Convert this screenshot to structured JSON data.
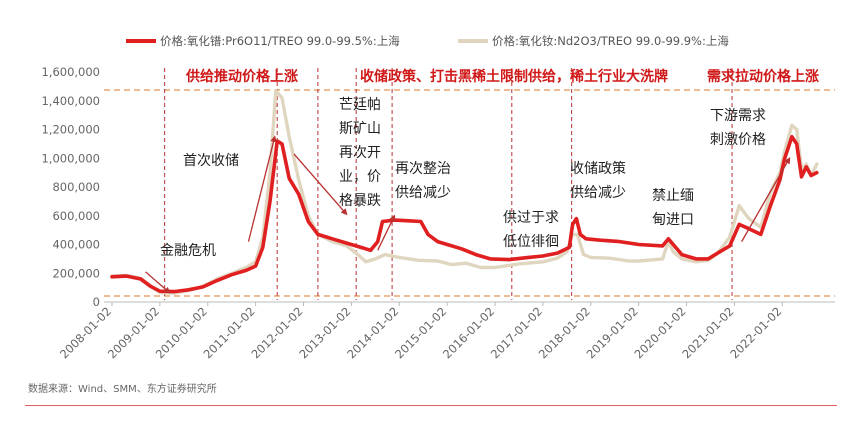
{
  "legend": {
    "pr": "价格:氧化镨:Pr6O11/TREO 99.0-99.5%:上海",
    "nd": "价格:氧化钕:Nd2O3/TREO 99.0-99.9%:上海"
  },
  "source": "数据来源：Wind、SMM、东方证券研究所",
  "phases": [
    "供给推动价格上涨",
    "收储政策、打击黑稀土限制供给，稀土行业大洗牌",
    "需求拉动价格上涨"
  ],
  "annotations": [
    {
      "id": "financial-crisis",
      "lines": [
        "金融危机"
      ]
    },
    {
      "id": "first-stockpile",
      "lines": [
        "首次收储"
      ]
    },
    {
      "id": "mountain-pass",
      "lines": [
        "芒廷帕",
        "斯矿山",
        "再次开",
        "业，价",
        "格暴跌"
      ]
    },
    {
      "id": "rectification",
      "lines": [
        "再次整治",
        "供给减少"
      ]
    },
    {
      "id": "oversupply",
      "lines": [
        "供过于求",
        "低位徘徊"
      ]
    },
    {
      "id": "stockpile-policy",
      "lines": [
        "收储政策",
        "供给减少"
      ]
    },
    {
      "id": "myanmar-ban",
      "lines": [
        "禁止缅",
        "甸进口"
      ]
    },
    {
      "id": "downstream-demand",
      "lines": [
        "下游需求",
        "刺激价格"
      ]
    }
  ],
  "colors": {
    "pr": "#e02020",
    "nd": "#e0d6c0",
    "guide": "#e07a2a",
    "phase_text": "#d01818",
    "axis_text": "#666666",
    "arrow": "#b83030"
  },
  "chart_data": {
    "type": "line",
    "x_ticks": [
      "2008-01-02",
      "2009-01-02",
      "2010-01-02",
      "2011-01-02",
      "2012-01-02",
      "2013-01-02",
      "2014-01-02",
      "2015-01-02",
      "2016-01-02",
      "2017-01-02",
      "2018-01-02",
      "2019-01-02",
      "2020-01-02",
      "2021-01-02",
      "2022-01-02"
    ],
    "y_ticks": [
      "0",
      "200,000",
      "400,000",
      "600,000",
      "800,000",
      "1,000,000",
      "1,200,000",
      "1,400,000",
      "1,600,000"
    ],
    "ylim": [
      0,
      1600000
    ],
    "xlim": [
      2008.0,
      2023.1
    ],
    "series": [
      {
        "name": "价格:氧化镨:Pr6O11/TREO 99.0-99.5%:上海",
        "points": [
          [
            2008.0,
            175000
          ],
          [
            2008.3,
            180000
          ],
          [
            2008.6,
            160000
          ],
          [
            2008.8,
            110000
          ],
          [
            2009.0,
            75000
          ],
          [
            2009.3,
            72000
          ],
          [
            2009.6,
            85000
          ],
          [
            2009.9,
            105000
          ],
          [
            2010.2,
            150000
          ],
          [
            2010.5,
            190000
          ],
          [
            2010.8,
            220000
          ],
          [
            2011.0,
            250000
          ],
          [
            2011.15,
            380000
          ],
          [
            2011.3,
            700000
          ],
          [
            2011.45,
            1120000
          ],
          [
            2011.55,
            1100000
          ],
          [
            2011.7,
            860000
          ],
          [
            2011.9,
            750000
          ],
          [
            2012.1,
            560000
          ],
          [
            2012.3,
            470000
          ],
          [
            2012.6,
            440000
          ],
          [
            2012.9,
            410000
          ],
          [
            2013.2,
            380000
          ],
          [
            2013.4,
            360000
          ],
          [
            2013.55,
            420000
          ],
          [
            2013.65,
            560000
          ],
          [
            2013.9,
            570000
          ],
          [
            2014.2,
            565000
          ],
          [
            2014.45,
            560000
          ],
          [
            2014.6,
            470000
          ],
          [
            2014.8,
            420000
          ],
          [
            2015.0,
            400000
          ],
          [
            2015.3,
            370000
          ],
          [
            2015.6,
            330000
          ],
          [
            2015.9,
            300000
          ],
          [
            2016.3,
            295000
          ],
          [
            2016.7,
            310000
          ],
          [
            2017.0,
            320000
          ],
          [
            2017.3,
            340000
          ],
          [
            2017.55,
            380000
          ],
          [
            2017.62,
            540000
          ],
          [
            2017.7,
            580000
          ],
          [
            2017.78,
            470000
          ],
          [
            2017.9,
            440000
          ],
          [
            2018.2,
            430000
          ],
          [
            2018.6,
            420000
          ],
          [
            2019.0,
            400000
          ],
          [
            2019.5,
            390000
          ],
          [
            2019.62,
            440000
          ],
          [
            2019.72,
            400000
          ],
          [
            2019.9,
            330000
          ],
          [
            2020.2,
            300000
          ],
          [
            2020.45,
            300000
          ],
          [
            2020.65,
            340000
          ],
          [
            2020.9,
            390000
          ],
          [
            2021.1,
            540000
          ],
          [
            2021.3,
            510000
          ],
          [
            2021.55,
            470000
          ],
          [
            2021.75,
            670000
          ],
          [
            2021.95,
            850000
          ],
          [
            2022.05,
            1000000
          ],
          [
            2022.2,
            1150000
          ],
          [
            2022.3,
            1100000
          ],
          [
            2022.4,
            870000
          ],
          [
            2022.5,
            940000
          ],
          [
            2022.6,
            880000
          ],
          [
            2022.72,
            900000
          ]
        ]
      },
      {
        "name": "价格:氧化钕:Nd2O3/TREO 99.0-99.9%:上海",
        "points": [
          [
            2008.0,
            180000
          ],
          [
            2008.3,
            185000
          ],
          [
            2008.6,
            165000
          ],
          [
            2008.8,
            115000
          ],
          [
            2009.0,
            65000
          ],
          [
            2009.3,
            62000
          ],
          [
            2009.6,
            80000
          ],
          [
            2009.9,
            110000
          ],
          [
            2010.2,
            160000
          ],
          [
            2010.5,
            200000
          ],
          [
            2010.8,
            240000
          ],
          [
            2011.0,
            280000
          ],
          [
            2011.15,
            450000
          ],
          [
            2011.3,
            900000
          ],
          [
            2011.42,
            1470000
          ],
          [
            2011.55,
            1420000
          ],
          [
            2011.7,
            1150000
          ],
          [
            2011.9,
            850000
          ],
          [
            2012.1,
            600000
          ],
          [
            2012.3,
            470000
          ],
          [
            2012.6,
            420000
          ],
          [
            2012.9,
            390000
          ],
          [
            2013.1,
            340000
          ],
          [
            2013.3,
            280000
          ],
          [
            2013.5,
            300000
          ],
          [
            2013.7,
            330000
          ],
          [
            2014.0,
            310000
          ],
          [
            2014.4,
            290000
          ],
          [
            2014.8,
            285000
          ],
          [
            2015.1,
            260000
          ],
          [
            2015.4,
            270000
          ],
          [
            2015.7,
            240000
          ],
          [
            2016.0,
            240000
          ],
          [
            2016.5,
            265000
          ],
          [
            2017.0,
            280000
          ],
          [
            2017.3,
            305000
          ],
          [
            2017.5,
            350000
          ],
          [
            2017.62,
            470000
          ],
          [
            2017.72,
            470000
          ],
          [
            2017.85,
            330000
          ],
          [
            2018.0,
            310000
          ],
          [
            2018.4,
            305000
          ],
          [
            2018.8,
            285000
          ],
          [
            2019.0,
            285000
          ],
          [
            2019.5,
            300000
          ],
          [
            2019.62,
            420000
          ],
          [
            2019.72,
            350000
          ],
          [
            2019.9,
            300000
          ],
          [
            2020.2,
            280000
          ],
          [
            2020.45,
            290000
          ],
          [
            2020.65,
            340000
          ],
          [
            2020.9,
            450000
          ],
          [
            2021.1,
            670000
          ],
          [
            2021.3,
            580000
          ],
          [
            2021.55,
            520000
          ],
          [
            2021.75,
            760000
          ],
          [
            2021.95,
            900000
          ],
          [
            2022.05,
            1050000
          ],
          [
            2022.2,
            1230000
          ],
          [
            2022.3,
            1200000
          ],
          [
            2022.4,
            920000
          ],
          [
            2022.5,
            960000
          ],
          [
            2022.6,
            880000
          ],
          [
            2022.72,
            960000
          ]
        ]
      }
    ]
  }
}
